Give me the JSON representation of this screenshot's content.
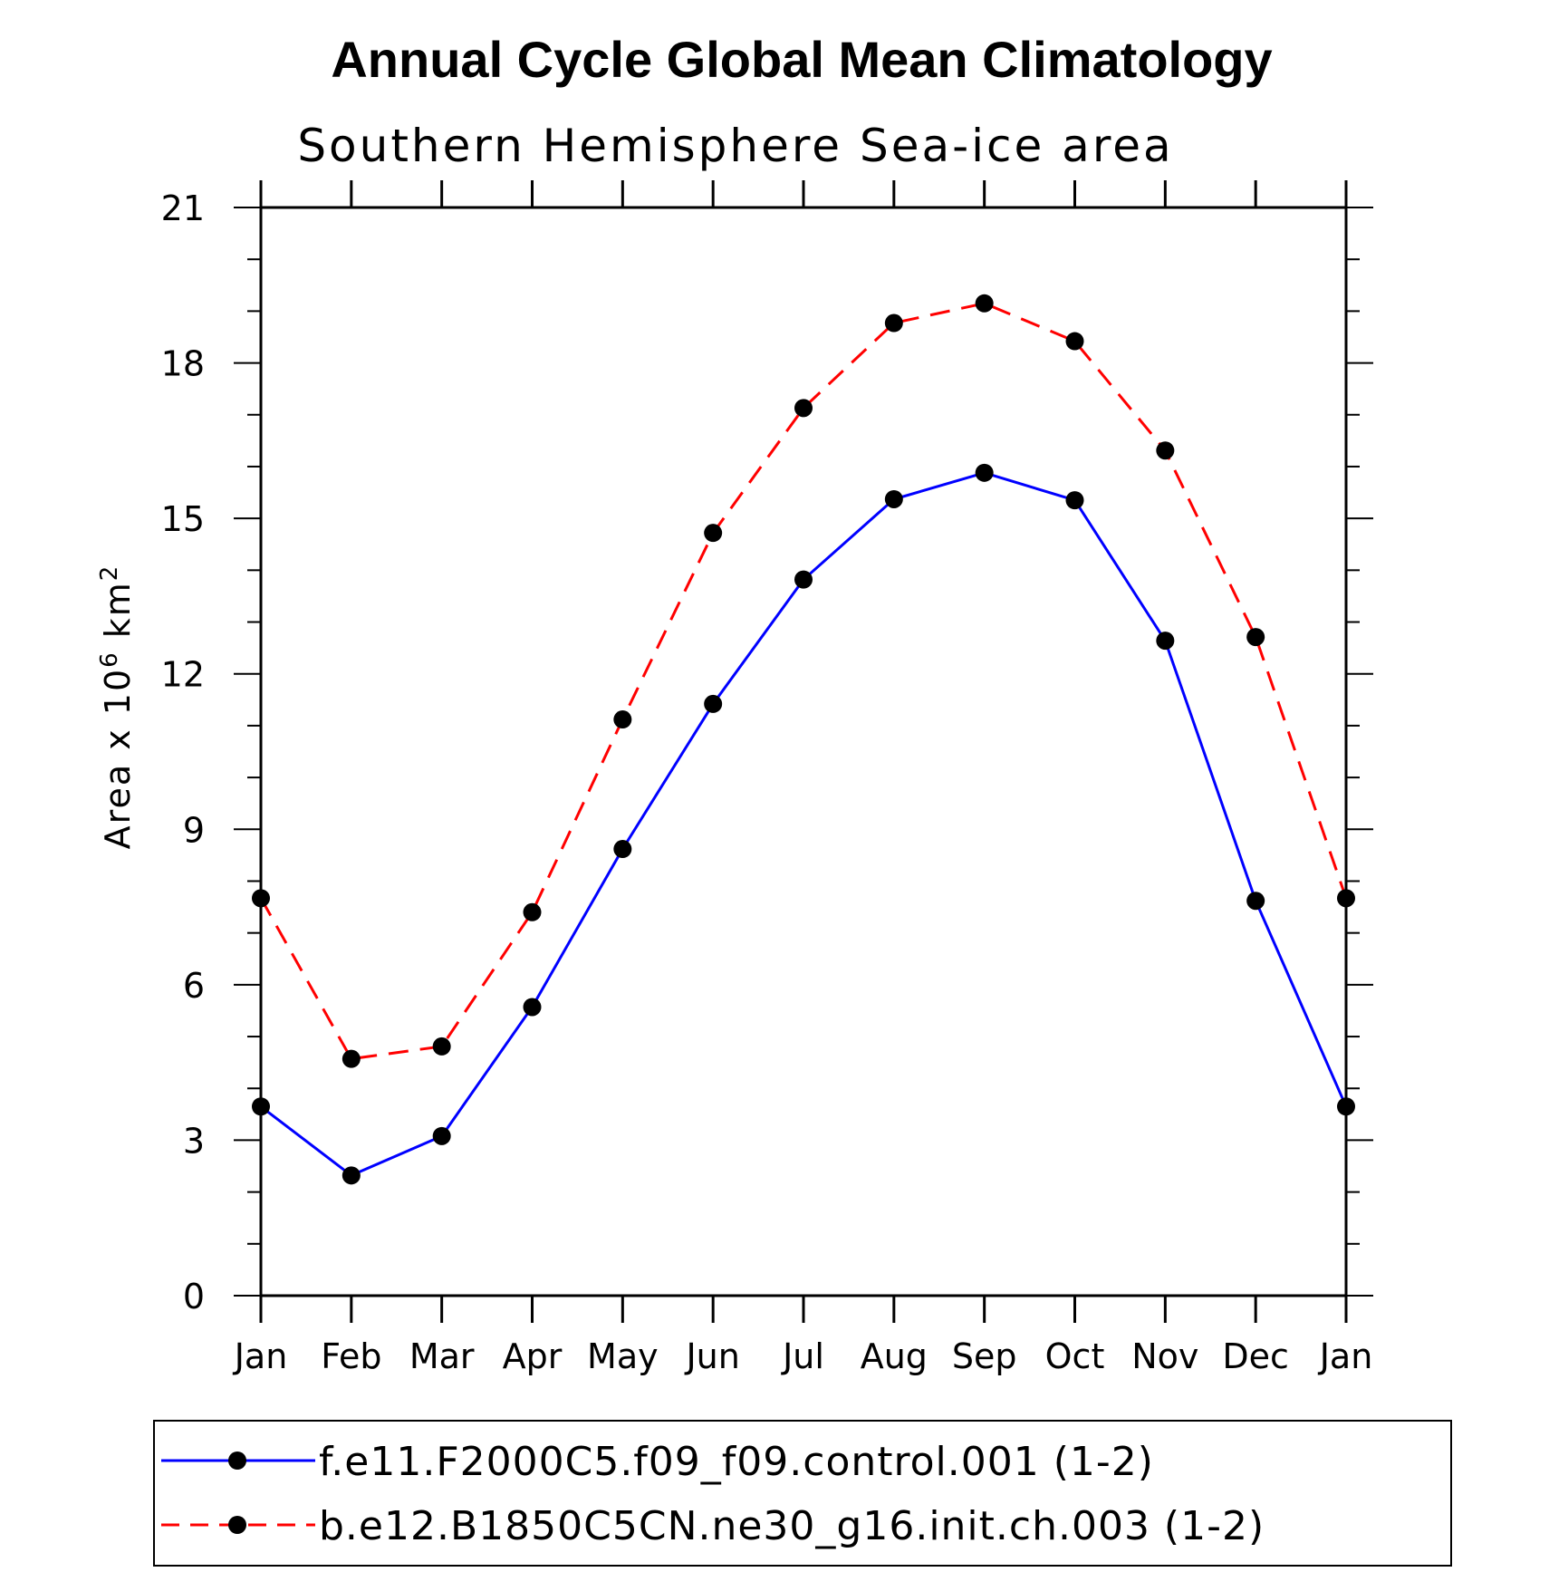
{
  "chart_data": {
    "type": "line",
    "title": "Annual Cycle Global Mean Climatology",
    "subtitle": "Southern Hemisphere Sea-ice area",
    "ylabel": "Area x 10^6 km^2",
    "ylabel_parts": {
      "base": "Area x 10",
      "exp1": "6",
      "mid": " km",
      "exp2": "2"
    },
    "xlabel": "",
    "categories": [
      "Jan",
      "Feb",
      "Mar",
      "Apr",
      "May",
      "Jun",
      "Jul",
      "Aug",
      "Sep",
      "Oct",
      "Nov",
      "Dec",
      "Jan"
    ],
    "ylim": [
      0,
      21
    ],
    "yticks": [
      0,
      3,
      6,
      9,
      12,
      15,
      18,
      21
    ],
    "series": [
      {
        "name": "f.e11.F2000C5.f09_f09.control.001 (1-2)",
        "color": "#0000ff",
        "dash": "solid",
        "marker": "filled-circle",
        "values": [
          3.65,
          2.32,
          3.08,
          5.57,
          8.62,
          11.42,
          13.82,
          15.37,
          15.88,
          15.35,
          12.64,
          7.62,
          3.65
        ]
      },
      {
        "name": "b.e12.B1850C5CN.ne30_g16.init.ch.003 (1-2)",
        "color": "#ff0000",
        "dash": "dashed",
        "marker": "filled-circle",
        "values": [
          7.67,
          4.57,
          4.81,
          7.4,
          11.12,
          14.72,
          17.13,
          18.77,
          19.15,
          18.42,
          16.31,
          12.71,
          7.67
        ]
      }
    ],
    "legend_position": "bottom"
  }
}
